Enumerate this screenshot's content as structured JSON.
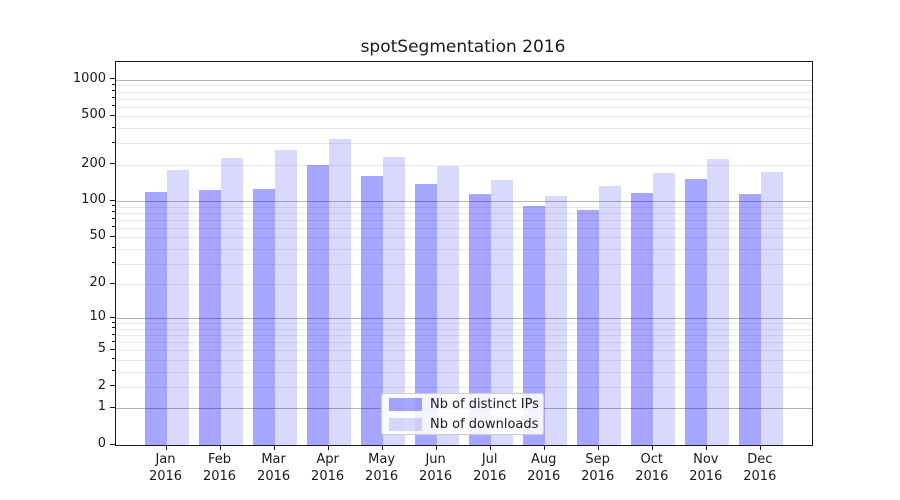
{
  "title": "spotSegmentation 2016",
  "legend": {
    "items": [
      {
        "label": "Nb of distinct IPs",
        "color": "rgba(0,0,255,0.35)"
      },
      {
        "label": "Nb of downloads",
        "color": "rgba(0,0,255,0.15)"
      }
    ]
  },
  "colors": {
    "bar_distinct_ips": "rgba(0,0,255,0.35)",
    "bar_downloads": "rgba(0,0,255,0.15)",
    "bar_distinct_ips_solid": "#a6a6ff",
    "bar_downloads_solid": "#d9d9ff",
    "grid_major": "#b3b3b3",
    "grid_minor": "#e9e9e9",
    "axis": "#1a1a1a"
  },
  "chart_data": {
    "type": "bar",
    "title": "spotSegmentation 2016",
    "year": "2016",
    "months": [
      "Jan",
      "Feb",
      "Mar",
      "Apr",
      "May",
      "Jun",
      "Jul",
      "Aug",
      "Sep",
      "Oct",
      "Nov",
      "Dec"
    ],
    "categories": [
      "Jan 2016",
      "Feb 2016",
      "Mar 2016",
      "Apr 2016",
      "May 2016",
      "Jun 2016",
      "Jul 2016",
      "Aug 2016",
      "Sep 2016",
      "Oct 2016",
      "Nov 2016",
      "Dec 2016"
    ],
    "series": [
      {
        "name": "Nb of distinct IPs",
        "color": "rgba(0,0,255,0.35)",
        "values": [
          118,
          123,
          125,
          197,
          162,
          139,
          115,
          91,
          84,
          117,
          152,
          114
        ]
      },
      {
        "name": "Nb of downloads",
        "color": "rgba(0,0,255,0.15)",
        "values": [
          180,
          229,
          266,
          325,
          230,
          196,
          150,
          110,
          134,
          172,
          221,
          174
        ]
      }
    ],
    "xlabel": "",
    "ylabel": "",
    "yscale": "log1p",
    "ylim": [
      0,
      1400
    ],
    "y_ticks": [
      0,
      1,
      2,
      5,
      10,
      20,
      50,
      100,
      200,
      500,
      1000
    ],
    "grid": "major+minor horizontal",
    "legend_position": "lower-center-inside"
  }
}
